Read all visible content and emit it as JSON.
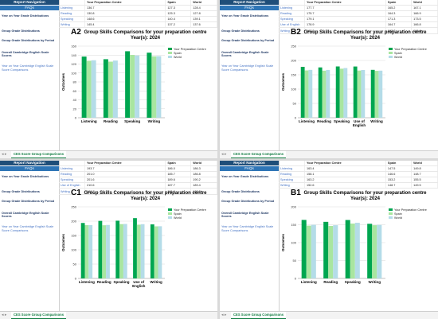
{
  "sidebar": {
    "header": "Report Navigation",
    "faq": "FAQs",
    "items": [
      {
        "label": "Year on Year Grade Distributions"
      },
      {
        "label": "Group Grade Distributions"
      },
      {
        "label": "Group Grade Distributions by Period"
      },
      {
        "label": "Overall Cambridge English Scale Scores"
      },
      {
        "label": "Year on Year Cambridge English Scale Score Comparisons"
      }
    ]
  },
  "table_headers": {
    "blank": "",
    "centre": "Your Preparation Centre",
    "spain": "Spain",
    "world": "World"
  },
  "tab_label": "CES Score Group Comparisons",
  "legend": [
    "Your Preparation Centre",
    "Spain",
    "World"
  ],
  "series_colors": [
    "#00a650",
    "#a9e6a0",
    "#b4dce8"
  ],
  "chart_title_line1": "Group Skills Comparisons for your preparation centre",
  "chart_title_line2": "Year(s): 2024",
  "ylabel": "Outcomes",
  "panels": [
    {
      "code": "A2",
      "rows": [
        {
          "skill": "Listening",
          "centre": "136.7",
          "spain": "127.3",
          "world": "128.4"
        },
        {
          "skill": "Reading",
          "centre": "130.8",
          "spain": "125.3",
          "world": "127.8"
        },
        {
          "skill": "Speaking",
          "centre": "148.6",
          "spain": "140.4",
          "world": "139.1"
        },
        {
          "skill": "Writing",
          "centre": "145.4",
          "spain": "137.2",
          "world": "137.6"
        }
      ],
      "chart_data": {
        "type": "bar",
        "categories": [
          "Listening",
          "Reading",
          "Speaking",
          "Writing"
        ],
        "series": [
          {
            "name": "Your Preparation Centre",
            "values": [
              136.7,
              130.8,
              148.6,
              145.4
            ]
          },
          {
            "name": "Spain",
            "values": [
              127.3,
              125.3,
              140.4,
              137.2
            ]
          },
          {
            "name": "World",
            "values": [
              128.4,
              127.8,
              139.1,
              137.6
            ]
          }
        ],
        "ylim": [
          0,
          160
        ],
        "yticks": [
          0,
          20,
          40,
          60,
          80,
          100,
          120,
          140,
          160
        ],
        "legend": "top-right"
      }
    },
    {
      "code": "B2",
      "rows": [
        {
          "skill": "Listening",
          "centre": "177.7",
          "spain": "165.2",
          "world": "167.1"
        },
        {
          "skill": "Reading",
          "centre": "175.7",
          "spain": "164.3",
          "world": "166.9"
        },
        {
          "skill": "Speaking",
          "centre": "179.1",
          "spain": "171.3",
          "world": "173.5"
        },
        {
          "skill": "Use of English",
          "centre": "178.9",
          "spain": "164.7",
          "world": "166.8"
        },
        {
          "skill": "Writing",
          "centre": "167.2",
          "spain": "163.7",
          "world": "164.4"
        }
      ],
      "chart_data": {
        "type": "bar",
        "categories": [
          "Listening",
          "Reading",
          "Speaking",
          "Use of English",
          "Writing"
        ],
        "series": [
          {
            "name": "Your Preparation Centre",
            "values": [
              177.7,
              175.7,
              179.1,
              178.9,
              167.2
            ]
          },
          {
            "name": "Spain",
            "values": [
              165.2,
              164.3,
              171.3,
              164.7,
              163.7
            ]
          },
          {
            "name": "World",
            "values": [
              167.1,
              166.9,
              173.5,
              166.8,
              164.4
            ]
          }
        ],
        "ylim": [
          0,
          250
        ],
        "yticks": [
          0,
          50,
          100,
          150,
          200,
          250
        ],
        "legend": "top-right"
      }
    },
    {
      "code": "C1",
      "rows": [
        {
          "skill": "Listening",
          "centre": "193.7",
          "spain": "186.0",
          "world": "186.3"
        },
        {
          "skill": "Reading",
          "centre": "201.0",
          "spain": "185.7",
          "world": "186.8"
        },
        {
          "skill": "Speaking",
          "centre": "201.6",
          "spain": "189.6",
          "world": "190.2"
        },
        {
          "skill": "Use of English",
          "centre": "210.6",
          "spain": "187.7",
          "world": "189.4"
        },
        {
          "skill": "Writing",
          "centre": "188.7",
          "spain": "181.9",
          "world": "182.3"
        }
      ],
      "chart_data": {
        "type": "bar",
        "categories": [
          "Listening",
          "Reading",
          "Speaking",
          "Use of English",
          "Writing"
        ],
        "series": [
          {
            "name": "Your Preparation Centre",
            "values": [
              193.7,
              201.0,
              201.6,
              210.6,
              188.7
            ]
          },
          {
            "name": "Spain",
            "values": [
              186.0,
              185.7,
              189.6,
              187.7,
              181.9
            ]
          },
          {
            "name": "World",
            "values": [
              186.3,
              186.8,
              190.2,
              189.4,
              182.3
            ]
          }
        ],
        "ylim": [
          0,
          250
        ],
        "yticks": [
          0,
          50,
          100,
          150,
          200,
          250
        ],
        "legend": "top-right"
      }
    },
    {
      "code": "B1",
      "rows": [
        {
          "skill": "Listening",
          "centre": "163.4",
          "spain": "147.5",
          "world": "149.8"
        },
        {
          "skill": "Reading",
          "centre": "158.1",
          "spain": "146.6",
          "world": "148.7"
        },
        {
          "skill": "Speaking",
          "centre": "163.2",
          "spain": "153.2",
          "world": "155.5"
        },
        {
          "skill": "Writing",
          "centre": "152.6",
          "spain": "148.7",
          "world": "149.5"
        }
      ],
      "chart_data": {
        "type": "bar",
        "categories": [
          "Listening",
          "Reading",
          "Speaking",
          "Writing"
        ],
        "series": [
          {
            "name": "Your Preparation Centre",
            "values": [
              163.4,
              158.1,
              163.2,
              152.6
            ]
          },
          {
            "name": "Spain",
            "values": [
              147.5,
              146.6,
              153.2,
              148.7
            ]
          },
          {
            "name": "World",
            "values": [
              149.8,
              148.7,
              155.5,
              149.5
            ]
          }
        ],
        "ylim": [
          0,
          200
        ],
        "yticks": [
          0,
          50,
          100,
          150,
          200
        ],
        "legend": "top-right"
      }
    }
  ]
}
